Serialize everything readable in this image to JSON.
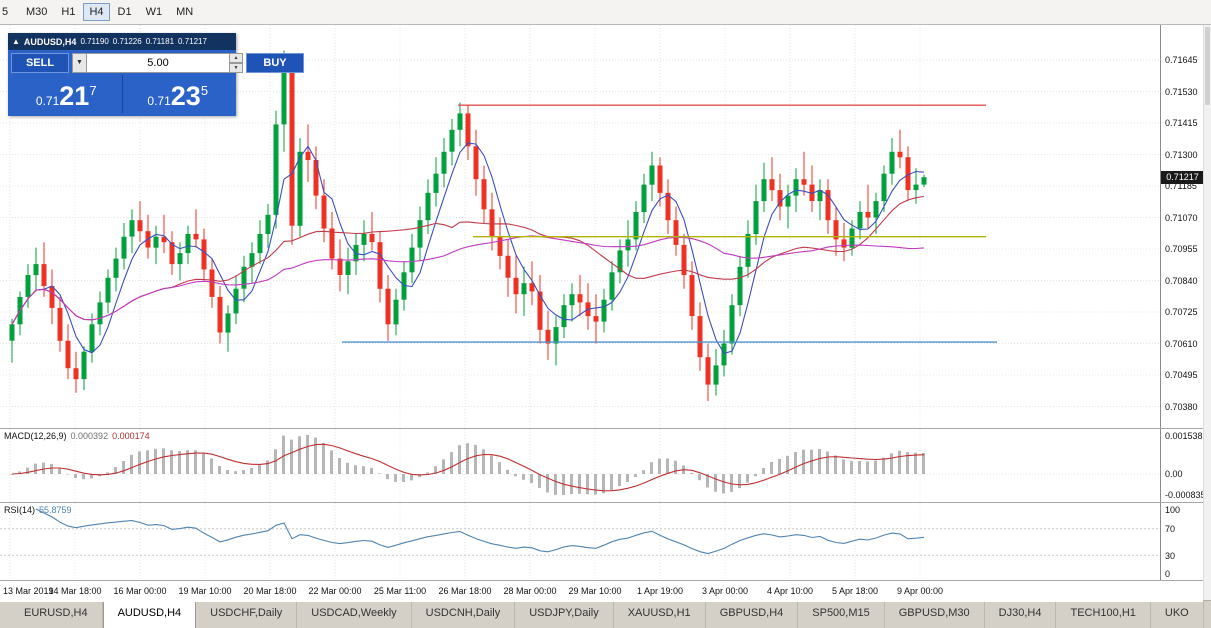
{
  "toolbar": {
    "timeframes": [
      {
        "label": "5",
        "active": false
      },
      {
        "label": "M30",
        "active": false
      },
      {
        "label": "H1",
        "active": false
      },
      {
        "label": "H4",
        "active": true
      },
      {
        "label": "D1",
        "active": false
      },
      {
        "label": "W1",
        "active": false
      },
      {
        "label": "MN",
        "active": false
      }
    ]
  },
  "trade_panel": {
    "collapse_icon": "▲",
    "symbol": "AUDUSD,H4",
    "open": "0.71190",
    "high": "0.71226",
    "low": "0.71181",
    "close": "0.71217",
    "sell_label": "SELL",
    "buy_label": "BUY",
    "volume": "5.00",
    "bid": {
      "prefix": "0.71",
      "big": "21",
      "sup": "7"
    },
    "ask": {
      "prefix": "0.71",
      "big": "23",
      "sup": "5"
    }
  },
  "price_scale": {
    "ticks": [
      "0.71645",
      "0.71530",
      "0.71415",
      "0.71300",
      "0.71185",
      "0.71070",
      "0.70955",
      "0.70840",
      "0.70725",
      "0.70610",
      "0.70495",
      "0.70380"
    ],
    "current": "0.71217"
  },
  "indicators": {
    "macd": {
      "name": "MACD(12,26,9)",
      "value_main": "0.000392",
      "value_signal": "0.000174",
      "axis_max": "0.001538",
      "axis_zero": "0.00",
      "axis_min": "-0.000835"
    },
    "rsi": {
      "name": "RSI(14)",
      "value": "55.8759",
      "axis": [
        "100",
        "70",
        "30",
        "0"
      ]
    }
  },
  "time_axis": [
    "13 Mar 2019",
    "14 Mar 18:00",
    "16 Mar 00:00",
    "19 Mar 10:00",
    "20 Mar 18:00",
    "22 Mar 00:00",
    "25 Mar 11:00",
    "26 Mar 18:00",
    "28 Mar 00:00",
    "29 Mar 10:00",
    "1 Apr 19:00",
    "3 Apr 00:00",
    "4 Apr 10:00",
    "5 Apr 18:00",
    "9 Apr 00:00"
  ],
  "tab_bar": [
    {
      "label": "EURUSD,H4",
      "active": false
    },
    {
      "label": "AUDUSD,H4",
      "active": true
    },
    {
      "label": "USDCHF,Daily",
      "active": false
    },
    {
      "label": "USDCAD,Weekly",
      "active": false
    },
    {
      "label": "USDCNH,Daily",
      "active": false
    },
    {
      "label": "USDJPY,Daily",
      "active": false
    },
    {
      "label": "XAUUSD,H1",
      "active": false
    },
    {
      "label": "GBPUSD,H4",
      "active": false
    },
    {
      "label": "SP500,M15",
      "active": false
    },
    {
      "label": "GBPUSD,M30",
      "active": false
    },
    {
      "label": "DJ30,H4",
      "active": false
    },
    {
      "label": "TECH100,H1",
      "active": false
    },
    {
      "label": "UKO",
      "active": false
    }
  ],
  "chart_data": {
    "type": "candlestick",
    "symbol": "AUDUSD",
    "timeframe": "H4",
    "title": "AUDUSD,H4",
    "ohlc_current": {
      "open": 0.7119,
      "high": 0.71226,
      "low": 0.71181,
      "close": 0.71217
    },
    "current_price": 0.71217,
    "y_ticks": [
      0.71645,
      0.7153,
      0.71415,
      0.713,
      0.71185,
      0.7107,
      0.70955,
      0.7084,
      0.70725,
      0.7061,
      0.70495,
      0.7038
    ],
    "colors": {
      "up": "#00a03c",
      "down": "#ef3124"
    },
    "moving_averages": [
      {
        "type": "sma",
        "period": 5,
        "color": "#3a4fc1"
      },
      {
        "type": "sma",
        "period": 21,
        "color": "#c23a4a"
      },
      {
        "type": "sma",
        "period": 55,
        "color": "#c03ac0"
      }
    ],
    "hlines": [
      {
        "price": 0.7148,
        "color": "#e05050",
        "x1": 0.395,
        "x2": 0.85
      },
      {
        "price": 0.71,
        "color": "#b2b400",
        "x1": 0.408,
        "x2": 0.85
      },
      {
        "price": 0.70615,
        "color": "#4f94cd",
        "x1": 0.295,
        "x2": 0.86
      }
    ],
    "indicator_defs": [
      {
        "type": "macd",
        "params": [
          12,
          26,
          9
        ],
        "values": [
          0.000392,
          0.000174
        ],
        "range": [
          -0.000835,
          0.001538
        ]
      },
      {
        "type": "rsi",
        "params": [
          14
        ],
        "value": 55.8759,
        "range": [
          0,
          100
        ],
        "levels": [
          70,
          30
        ]
      }
    ],
    "candles": [
      [
        0.7062,
        0.707,
        0.7054,
        0.7068
      ],
      [
        0.7068,
        0.708,
        0.7064,
        0.7078
      ],
      [
        0.7078,
        0.709,
        0.7074,
        0.7086
      ],
      [
        0.7086,
        0.7096,
        0.708,
        0.709
      ],
      [
        0.709,
        0.7098,
        0.7078,
        0.7082
      ],
      [
        0.7082,
        0.7088,
        0.7068,
        0.7074
      ],
      [
        0.7074,
        0.7078,
        0.7058,
        0.7062
      ],
      [
        0.7062,
        0.7068,
        0.7048,
        0.7052
      ],
      [
        0.7052,
        0.7058,
        0.7043,
        0.7048
      ],
      [
        0.7048,
        0.706,
        0.7044,
        0.7058
      ],
      [
        0.7058,
        0.7072,
        0.7054,
        0.7068
      ],
      [
        0.7068,
        0.708,
        0.7064,
        0.7076
      ],
      [
        0.7076,
        0.7088,
        0.7072,
        0.7085
      ],
      [
        0.7085,
        0.7096,
        0.708,
        0.7092
      ],
      [
        0.7092,
        0.7105,
        0.7088,
        0.71
      ],
      [
        0.71,
        0.711,
        0.7094,
        0.7106
      ],
      [
        0.7106,
        0.7113,
        0.7098,
        0.7102
      ],
      [
        0.7102,
        0.7108,
        0.7092,
        0.7096
      ],
      [
        0.7096,
        0.7104,
        0.709,
        0.71
      ],
      [
        0.71,
        0.7108,
        0.7094,
        0.7098
      ],
      [
        0.7098,
        0.7102,
        0.7086,
        0.709
      ],
      [
        0.709,
        0.7098,
        0.7084,
        0.7094
      ],
      [
        0.7094,
        0.7104,
        0.709,
        0.7101
      ],
      [
        0.7101,
        0.711,
        0.7096,
        0.7099
      ],
      [
        0.7099,
        0.7103,
        0.7084,
        0.7088
      ],
      [
        0.7088,
        0.7092,
        0.7074,
        0.7078
      ],
      [
        0.7078,
        0.7082,
        0.7061,
        0.7065
      ],
      [
        0.7065,
        0.7075,
        0.7058,
        0.7072
      ],
      [
        0.7072,
        0.7086,
        0.7068,
        0.7081
      ],
      [
        0.7081,
        0.7093,
        0.7076,
        0.7089
      ],
      [
        0.7089,
        0.7098,
        0.7083,
        0.7094
      ],
      [
        0.7094,
        0.7106,
        0.709,
        0.7101
      ],
      [
        0.7101,
        0.7112,
        0.7096,
        0.7108
      ],
      [
        0.7108,
        0.7146,
        0.7103,
        0.7141
      ],
      [
        0.7141,
        0.7168,
        0.7131,
        0.7161
      ],
      [
        0.7161,
        0.7165,
        0.7097,
        0.7104
      ],
      [
        0.7104,
        0.7136,
        0.71,
        0.7131
      ],
      [
        0.7131,
        0.7141,
        0.712,
        0.7128
      ],
      [
        0.7128,
        0.7133,
        0.711,
        0.7115
      ],
      [
        0.7115,
        0.7121,
        0.7098,
        0.7103
      ],
      [
        0.7103,
        0.7109,
        0.7088,
        0.7092
      ],
      [
        0.7092,
        0.7099,
        0.708,
        0.7086
      ],
      [
        0.7086,
        0.7096,
        0.7079,
        0.7091
      ],
      [
        0.7091,
        0.7101,
        0.7086,
        0.7097
      ],
      [
        0.7097,
        0.7106,
        0.7091,
        0.7101
      ],
      [
        0.7101,
        0.7109,
        0.7095,
        0.7098
      ],
      [
        0.7098,
        0.7102,
        0.7076,
        0.7081
      ],
      [
        0.7081,
        0.7086,
        0.7062,
        0.7068
      ],
      [
        0.7068,
        0.7081,
        0.7064,
        0.7077
      ],
      [
        0.7077,
        0.7091,
        0.7073,
        0.7087
      ],
      [
        0.7087,
        0.7101,
        0.7083,
        0.7096
      ],
      [
        0.7096,
        0.7111,
        0.7091,
        0.7106
      ],
      [
        0.7106,
        0.7121,
        0.7101,
        0.7116
      ],
      [
        0.7116,
        0.7129,
        0.7111,
        0.7123
      ],
      [
        0.7123,
        0.7136,
        0.7118,
        0.7131
      ],
      [
        0.7131,
        0.7143,
        0.7126,
        0.7139
      ],
      [
        0.7139,
        0.7149,
        0.7133,
        0.7145
      ],
      [
        0.7145,
        0.7148,
        0.7128,
        0.7133
      ],
      [
        0.7133,
        0.7139,
        0.7115,
        0.7121
      ],
      [
        0.7121,
        0.7126,
        0.7105,
        0.711
      ],
      [
        0.711,
        0.7116,
        0.7095,
        0.71
      ],
      [
        0.71,
        0.7107,
        0.7088,
        0.7093
      ],
      [
        0.7093,
        0.7099,
        0.7078,
        0.7085
      ],
      [
        0.7085,
        0.7093,
        0.7072,
        0.7079
      ],
      [
        0.7079,
        0.7089,
        0.7071,
        0.7083
      ],
      [
        0.7083,
        0.7091,
        0.7075,
        0.708
      ],
      [
        0.708,
        0.7086,
        0.7061,
        0.7066
      ],
      [
        0.7066,
        0.7073,
        0.7055,
        0.7061
      ],
      [
        0.7061,
        0.7071,
        0.7053,
        0.7067
      ],
      [
        0.7067,
        0.7079,
        0.7063,
        0.7075
      ],
      [
        0.7075,
        0.7083,
        0.7069,
        0.7079
      ],
      [
        0.7079,
        0.7086,
        0.7071,
        0.7076
      ],
      [
        0.7076,
        0.7083,
        0.7066,
        0.7071
      ],
      [
        0.7071,
        0.7079,
        0.7061,
        0.7069
      ],
      [
        0.7069,
        0.7081,
        0.7065,
        0.7077
      ],
      [
        0.7077,
        0.7091,
        0.7073,
        0.7087
      ],
      [
        0.7087,
        0.7099,
        0.7083,
        0.7095
      ],
      [
        0.7095,
        0.7106,
        0.7089,
        0.7099
      ],
      [
        0.7099,
        0.7113,
        0.7095,
        0.7109
      ],
      [
        0.7109,
        0.7123,
        0.7105,
        0.7119
      ],
      [
        0.7119,
        0.7131,
        0.7113,
        0.7126
      ],
      [
        0.7126,
        0.7129,
        0.7111,
        0.7116
      ],
      [
        0.7116,
        0.7121,
        0.7101,
        0.7106
      ],
      [
        0.7106,
        0.7111,
        0.7093,
        0.7097
      ],
      [
        0.7097,
        0.7101,
        0.7081,
        0.7086
      ],
      [
        0.7086,
        0.7091,
        0.7066,
        0.7071
      ],
      [
        0.7071,
        0.7076,
        0.7051,
        0.7056
      ],
      [
        0.7056,
        0.7061,
        0.704,
        0.7046
      ],
      [
        0.7046,
        0.7059,
        0.7042,
        0.7053
      ],
      [
        0.7053,
        0.7066,
        0.7049,
        0.7061
      ],
      [
        0.7061,
        0.7079,
        0.7057,
        0.7075
      ],
      [
        0.7075,
        0.7093,
        0.7071,
        0.7089
      ],
      [
        0.7089,
        0.7106,
        0.7085,
        0.7101
      ],
      [
        0.7101,
        0.7119,
        0.7097,
        0.7113
      ],
      [
        0.7113,
        0.7127,
        0.7109,
        0.7121
      ],
      [
        0.7121,
        0.7129,
        0.7113,
        0.7117
      ],
      [
        0.7117,
        0.7123,
        0.7106,
        0.7111
      ],
      [
        0.7111,
        0.7119,
        0.7103,
        0.7115
      ],
      [
        0.7115,
        0.7125,
        0.7109,
        0.7121
      ],
      [
        0.7121,
        0.7131,
        0.7115,
        0.7119
      ],
      [
        0.7119,
        0.7126,
        0.7109,
        0.7113
      ],
      [
        0.7113,
        0.7121,
        0.7106,
        0.7117
      ],
      [
        0.7117,
        0.7121,
        0.7101,
        0.7106
      ],
      [
        0.7106,
        0.7111,
        0.7093,
        0.7099
      ],
      [
        0.7099,
        0.7105,
        0.7091,
        0.7096
      ],
      [
        0.7096,
        0.7106,
        0.7093,
        0.7103
      ],
      [
        0.7103,
        0.7113,
        0.7099,
        0.7109
      ],
      [
        0.7109,
        0.7119,
        0.7103,
        0.7107
      ],
      [
        0.7107,
        0.7116,
        0.7101,
        0.7113
      ],
      [
        0.7113,
        0.7126,
        0.7109,
        0.7123
      ],
      [
        0.7123,
        0.7136,
        0.7119,
        0.7131
      ],
      [
        0.7131,
        0.7139,
        0.7125,
        0.7129
      ],
      [
        0.7129,
        0.7133,
        0.7113,
        0.7117
      ],
      [
        0.7117,
        0.7125,
        0.7112,
        0.7119
      ],
      [
        0.7119,
        0.71226,
        0.71181,
        0.71217
      ]
    ]
  }
}
